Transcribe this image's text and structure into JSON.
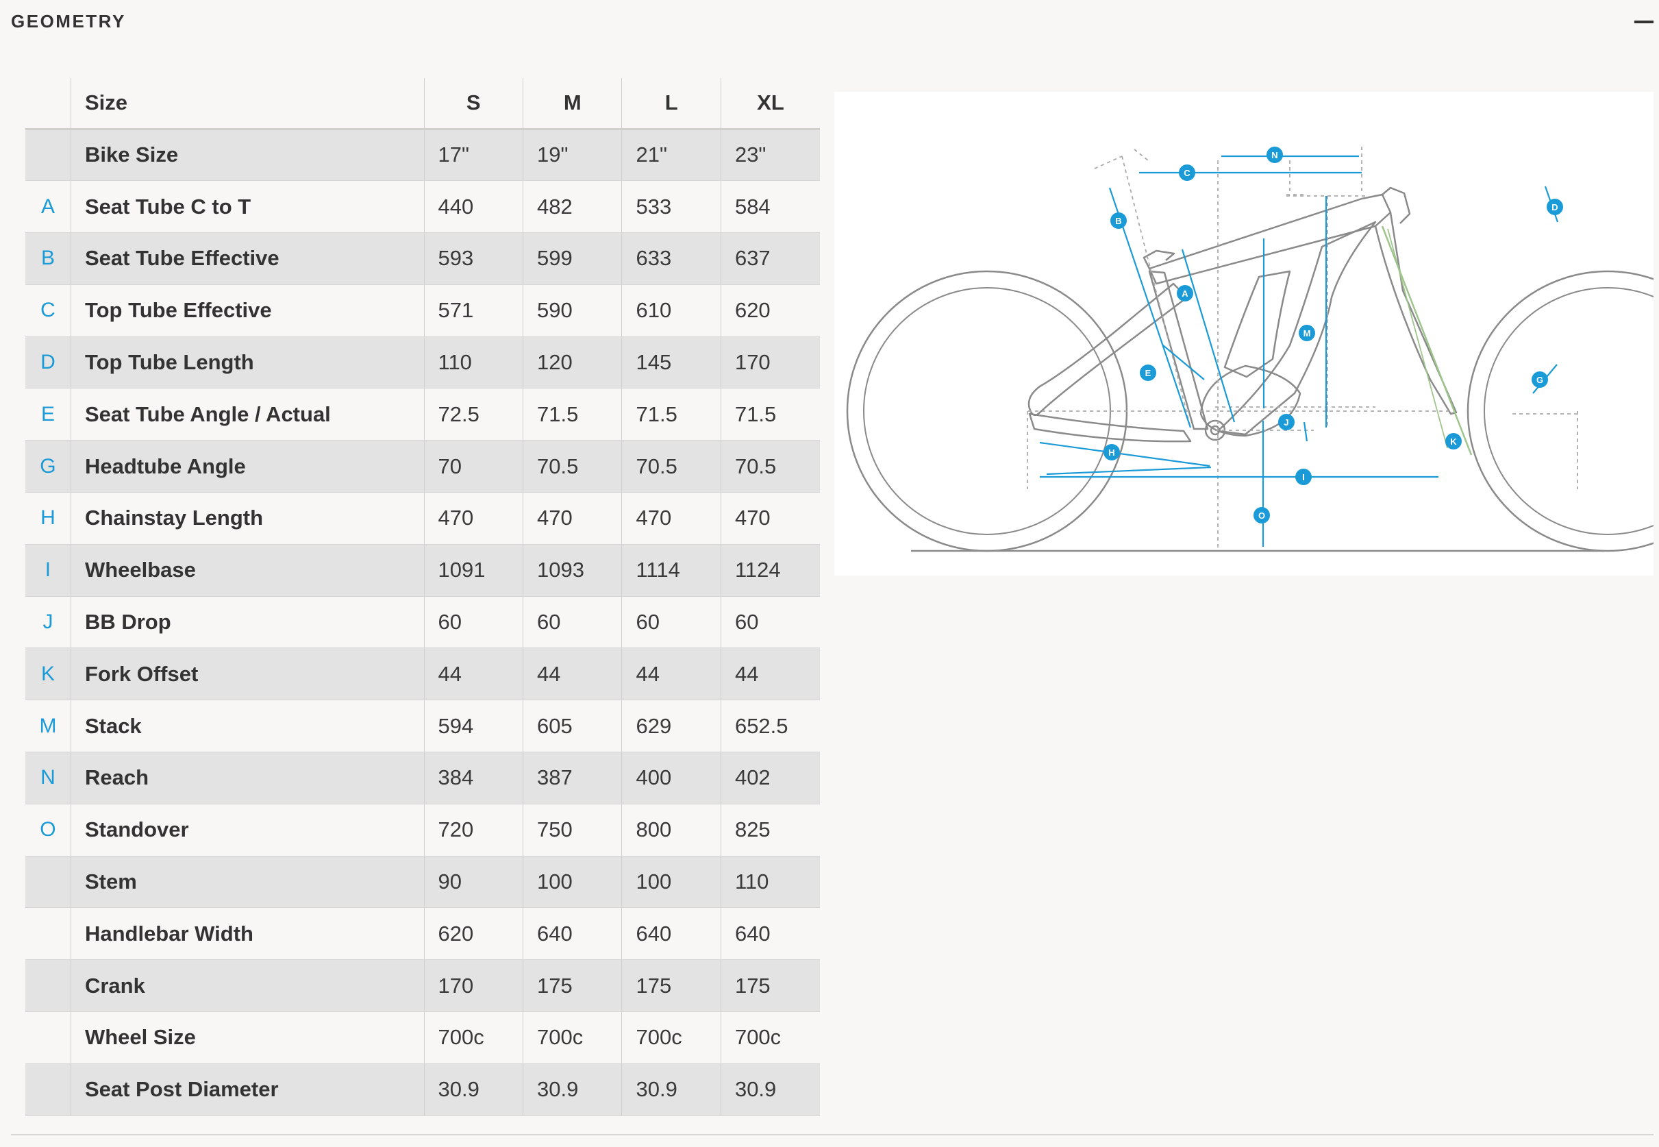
{
  "section": {
    "title": "GEOMETRY"
  },
  "table": {
    "headers": {
      "size": "Size",
      "sizes": [
        "S",
        "M",
        "L",
        "XL"
      ]
    },
    "rows": [
      {
        "letter": "",
        "name": "Bike Size",
        "values": [
          "17\"",
          "19\"",
          "21\"",
          "23\""
        ]
      },
      {
        "letter": "A",
        "name": "Seat Tube C to T",
        "values": [
          "440",
          "482",
          "533",
          "584"
        ]
      },
      {
        "letter": "B",
        "name": "Seat Tube Effective",
        "values": [
          "593",
          "599",
          "633",
          "637"
        ]
      },
      {
        "letter": "C",
        "name": "Top Tube Effective",
        "values": [
          "571",
          "590",
          "610",
          "620"
        ]
      },
      {
        "letter": "D",
        "name": "Top Tube Length",
        "values": [
          "110",
          "120",
          "145",
          "170"
        ]
      },
      {
        "letter": "E",
        "name": "Seat Tube Angle / Actual",
        "values": [
          "72.5",
          "71.5",
          "71.5",
          "71.5"
        ]
      },
      {
        "letter": "G",
        "name": "Headtube Angle",
        "values": [
          "70",
          "70.5",
          "70.5",
          "70.5"
        ]
      },
      {
        "letter": "H",
        "name": "Chainstay Length",
        "values": [
          "470",
          "470",
          "470",
          "470"
        ]
      },
      {
        "letter": "I",
        "name": "Wheelbase",
        "values": [
          "1091",
          "1093",
          "1114",
          "1124"
        ]
      },
      {
        "letter": "J",
        "name": "BB Drop",
        "values": [
          "60",
          "60",
          "60",
          "60"
        ]
      },
      {
        "letter": "K",
        "name": "Fork Offset",
        "values": [
          "44",
          "44",
          "44",
          "44"
        ]
      },
      {
        "letter": "M",
        "name": "Stack",
        "values": [
          "594",
          "605",
          "629",
          "652.5"
        ]
      },
      {
        "letter": "N",
        "name": "Reach",
        "values": [
          "384",
          "387",
          "400",
          "402"
        ]
      },
      {
        "letter": "O",
        "name": "Standover",
        "values": [
          "720",
          "750",
          "800",
          "825"
        ]
      },
      {
        "letter": "",
        "name": "Stem",
        "values": [
          "90",
          "100",
          "100",
          "110"
        ]
      },
      {
        "letter": "",
        "name": "Handlebar Width",
        "values": [
          "620",
          "640",
          "640",
          "640"
        ]
      },
      {
        "letter": "",
        "name": "Crank",
        "values": [
          "170",
          "175",
          "175",
          "175"
        ]
      },
      {
        "letter": "",
        "name": "Wheel Size",
        "values": [
          "700c",
          "700c",
          "700c",
          "700c"
        ]
      },
      {
        "letter": "",
        "name": "Seat Post Diameter",
        "values": [
          "30.9",
          "30.9",
          "30.9",
          "30.9"
        ]
      }
    ]
  },
  "diagram": {
    "markers": [
      "A",
      "B",
      "C",
      "D",
      "E",
      "G",
      "H",
      "I",
      "J",
      "K",
      "M",
      "N",
      "O"
    ],
    "colors": {
      "accent": "#1a9ad6",
      "frame": "#8a8a8a",
      "dim": "#aaaaaa",
      "fork_line": "#9fc58d"
    }
  }
}
